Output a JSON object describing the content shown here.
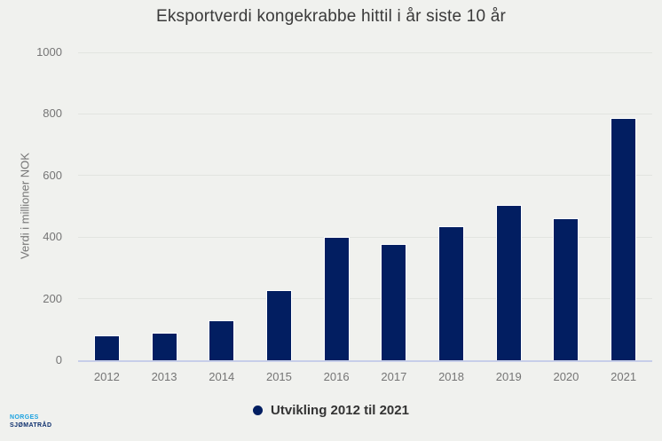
{
  "chart_data": {
    "type": "bar",
    "title": "Eksportverdi kongekrabbe hittil i år siste 10 år",
    "xlabel": "",
    "ylabel": "Verdi i millioner NOK",
    "categories": [
      "2012",
      "2013",
      "2014",
      "2015",
      "2016",
      "2017",
      "2018",
      "2019",
      "2020",
      "2021"
    ],
    "series": [
      {
        "name": "Utvikling 2012 til 2021",
        "values": [
          80,
          90,
          130,
          227,
          402,
          379,
          436,
          503,
          461,
          788
        ]
      }
    ],
    "ylim": [
      0,
      1000
    ],
    "yticks": [
      0,
      200,
      400,
      600,
      800,
      1000
    ],
    "grid": true,
    "legend_position": "bottom"
  },
  "legend": {
    "label": "Utvikling 2012 til 2021"
  },
  "logo": {
    "line1": "NORGES",
    "line2": "SJØMATRÅD"
  },
  "colors": {
    "background": "#f0f1ee",
    "bar": "#021e61",
    "gridline": "#e2e4e0",
    "axis_line": "#c7cee9",
    "tick_text": "#757575",
    "title_text": "#3a3a3a",
    "legend_text": "#333333",
    "logo_blue": "#1ba2e0",
    "logo_navy": "#0d2f6d"
  }
}
